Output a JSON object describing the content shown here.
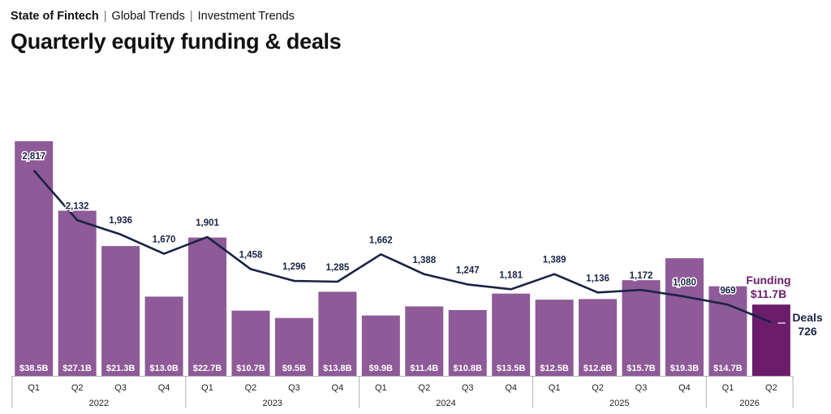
{
  "header": {
    "breadcrumb": [
      "State of Fintech",
      "Global Trends",
      "Investment Trends"
    ],
    "title": "Quarterly equity funding & deals"
  },
  "colors": {
    "bar": "#8e5a97",
    "bar_highlight": "#6b1d6c",
    "line": "#1a2244",
    "funding_label": "#6b1d6c",
    "deals_label": "#1a2244",
    "axis": "#b0b0b0"
  },
  "chart_data": {
    "type": "bar",
    "title": "Quarterly equity funding & deals",
    "categories": [
      "Q1",
      "Q2",
      "Q3",
      "Q4",
      "Q1",
      "Q2",
      "Q3",
      "Q4",
      "Q1",
      "Q2",
      "Q3",
      "Q4",
      "Q1",
      "Q2",
      "Q3",
      "Q4",
      "Q1",
      "Q2"
    ],
    "years": [
      {
        "label": "2022",
        "count": 4
      },
      {
        "label": "2023",
        "count": 4
      },
      {
        "label": "2024",
        "count": 4
      },
      {
        "label": "2025",
        "count": 4
      },
      {
        "label": "2026",
        "count": 2
      }
    ],
    "series": [
      {
        "name": "Funding",
        "kind": "bar",
        "unit": "$B",
        "values": [
          38.5,
          27.1,
          21.3,
          13.0,
          22.7,
          10.7,
          9.5,
          13.8,
          9.9,
          11.4,
          10.8,
          13.5,
          12.5,
          12.6,
          15.7,
          19.3,
          14.7,
          11.7
        ],
        "labels": [
          "$38.5B",
          "$27.1B",
          "$21.3B",
          "$13.0B",
          "$22.7B",
          "$10.7B",
          "$9.5B",
          "$13.8B",
          "$9.9B",
          "$11.4B",
          "$10.8B",
          "$13.5B",
          "$12.5B",
          "$12.6B",
          "$15.7B",
          "$19.3B",
          "$14.7B",
          ""
        ]
      },
      {
        "name": "Deals",
        "kind": "line",
        "values": [
          2817,
          2132,
          1936,
          1670,
          1901,
          1458,
          1296,
          1285,
          1662,
          1388,
          1247,
          1181,
          1389,
          1136,
          1172,
          1080,
          969,
          726
        ],
        "labels": [
          "2,817",
          "2,132",
          "1,936",
          "1,670",
          "1,901",
          "1,458",
          "1,296",
          "1,285",
          "1,662",
          "1,388",
          "1,247",
          "1,181",
          "1,389",
          "1,136",
          "1,172",
          "1,080",
          "969",
          ""
        ]
      }
    ],
    "highlight_index": 17,
    "callouts": {
      "funding_name": "Funding",
      "funding_value": "$11.7B",
      "deals_name": "Deals",
      "deals_value": "726"
    }
  }
}
